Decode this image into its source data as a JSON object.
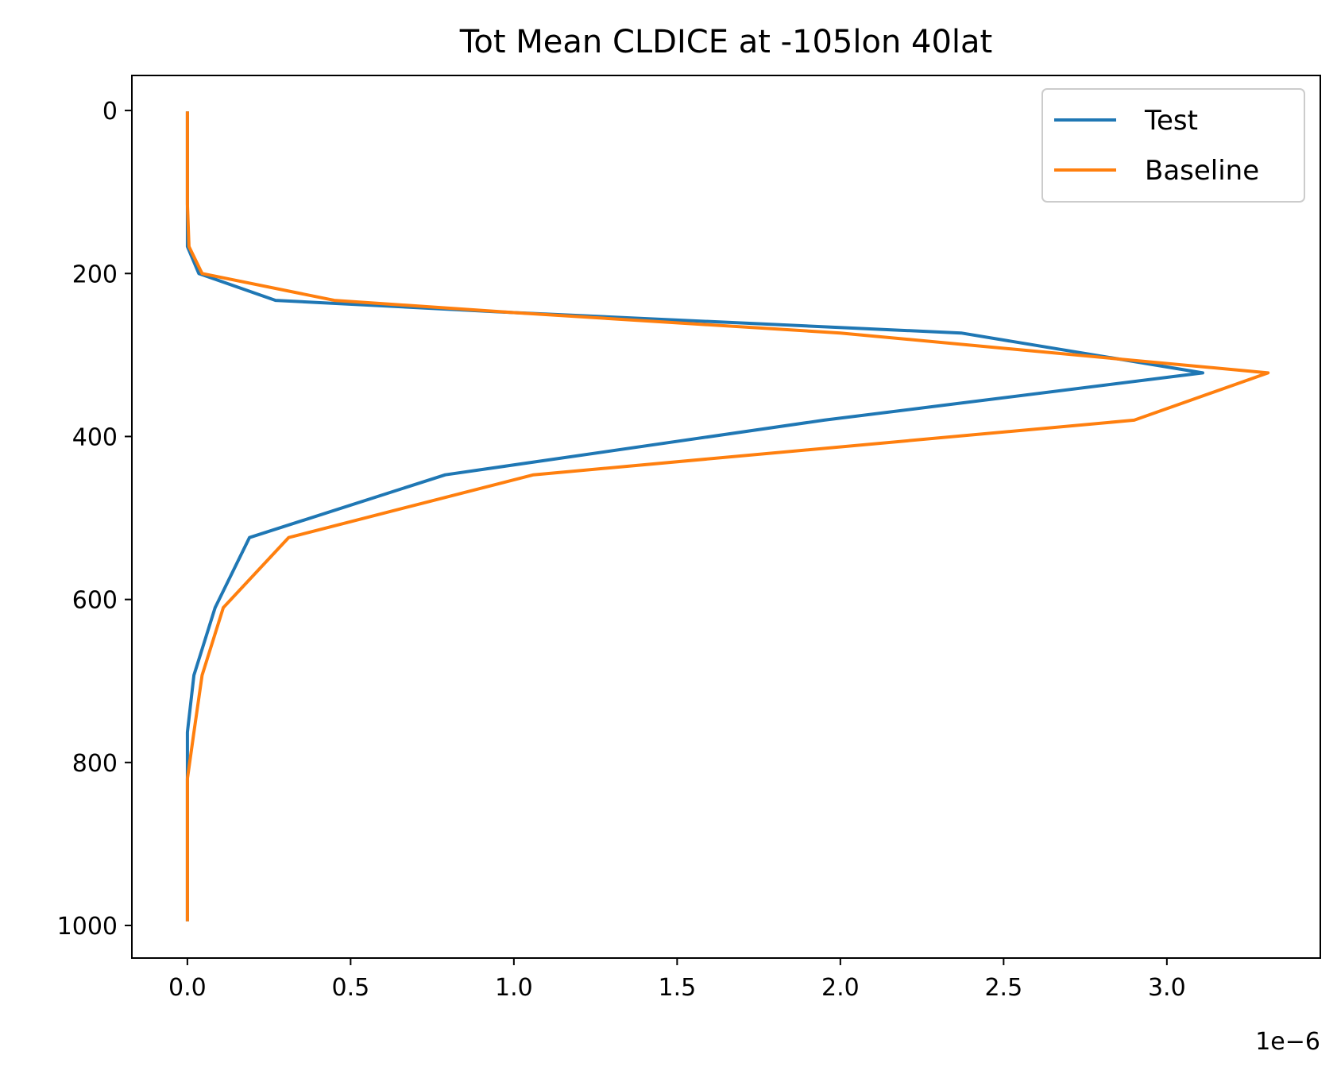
{
  "chart_data": {
    "type": "line",
    "title": "Tot Mean CLDICE at -105lon 40lat",
    "xlabel": "",
    "ylabel": "",
    "x_offset_text": "1e−6",
    "x_scale": 1e-06,
    "xlim": [
      -0.17,
      3.47
    ],
    "ylim": [
      1040,
      -43
    ],
    "y_inverted": true,
    "x_ticks": [
      0.0,
      0.5,
      1.0,
      1.5,
      2.0,
      2.5,
      3.0
    ],
    "x_tick_labels": [
      "0.0",
      "0.5",
      "1.0",
      "1.5",
      "2.0",
      "2.5",
      "3.0"
    ],
    "y_ticks": [
      0,
      200,
      400,
      600,
      800,
      1000
    ],
    "y_tick_labels": [
      "0",
      "200",
      "400",
      "600",
      "800",
      "1000"
    ],
    "grid": false,
    "legend": {
      "position": "top-right",
      "entries": [
        "Test",
        "Baseline"
      ]
    },
    "colors": {
      "Test": "#1f77b4",
      "Baseline": "#ff7f0e"
    },
    "y": [
      3,
      60,
      115,
      167,
      200,
      233,
      248,
      273,
      322,
      380,
      447,
      524,
      610,
      693,
      763,
      820,
      860,
      900,
      940,
      993
    ],
    "series": [
      {
        "name": "Test",
        "x": [
          0.0,
          0.0,
          0.0,
          0.0,
          0.035,
          0.27,
          1.0,
          2.37,
          3.11,
          1.95,
          0.79,
          0.19,
          0.085,
          0.02,
          0.0,
          0.0,
          0.0,
          0.0,
          0.0,
          0.0
        ]
      },
      {
        "name": "Baseline",
        "x": [
          0.0,
          0.0,
          0.0,
          0.005,
          0.045,
          0.45,
          1.0,
          2.0,
          3.31,
          2.9,
          1.06,
          0.31,
          0.11,
          0.045,
          0.02,
          0.0,
          0.0,
          0.0,
          0.0,
          0.0
        ]
      }
    ]
  }
}
